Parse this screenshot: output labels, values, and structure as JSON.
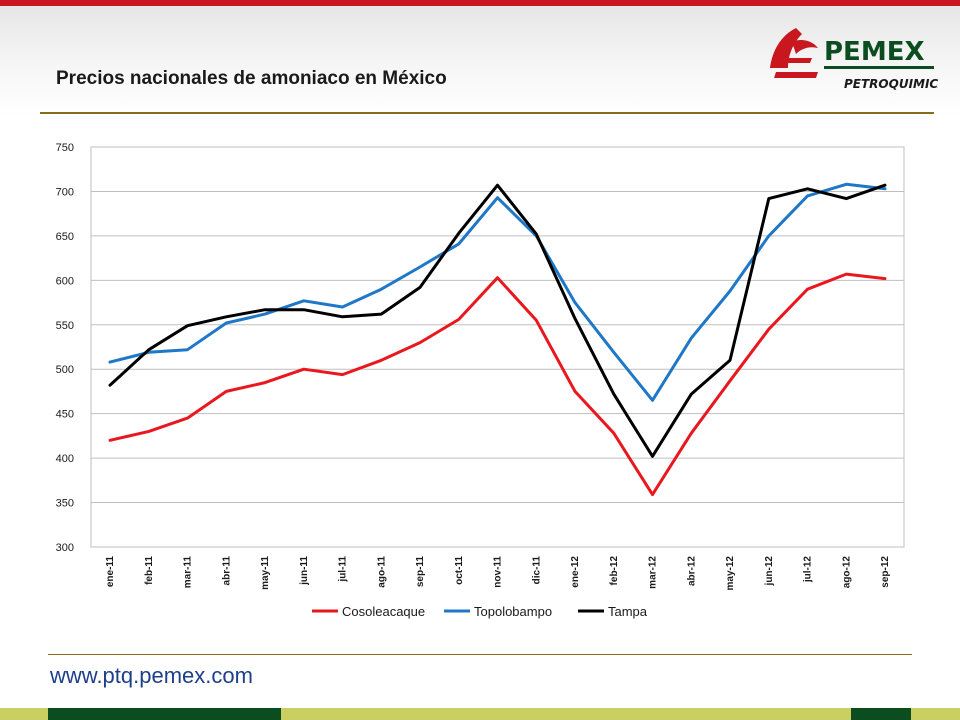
{
  "header": {
    "title": "Precios nacionales de amoniaco en México",
    "logo_text": "PEMEX",
    "logo_subtext": "PETROQUIMICA"
  },
  "footer": {
    "url": "www.ptq.pemex.com"
  },
  "colors": {
    "brand_red": "#c8171e",
    "brand_green": "#0b4d1e",
    "band_lime": "#c9cf63",
    "rule_gold": "#8a6d1a",
    "url_blue": "#1f3f8a"
  },
  "chart_data": {
    "type": "line",
    "title": "",
    "xlabel": "",
    "ylabel": "",
    "ylim": [
      300,
      750
    ],
    "yticks": [
      300,
      350,
      400,
      450,
      500,
      550,
      600,
      650,
      700,
      750
    ],
    "grid": true,
    "legend_position": "bottom",
    "categories": [
      "ene-11",
      "feb-11",
      "mar-11",
      "abr-11",
      "may-11",
      "jun-11",
      "jul-11",
      "ago-11",
      "sep-11",
      "oct-11",
      "nov-11",
      "dic-11",
      "ene-12",
      "feb-12",
      "mar-12",
      "abr-12",
      "may-12",
      "jun-12",
      "jul-12",
      "ago-12",
      "sep-12"
    ],
    "series": [
      {
        "name": "Cosoleacaque",
        "color": "#e8181e",
        "values": [
          420,
          430,
          445,
          475,
          485,
          500,
          494,
          510,
          530,
          556,
          603,
          555,
          475,
          428,
          359,
          428,
          487,
          545,
          590,
          607,
          602
        ]
      },
      {
        "name": "Topolobampo",
        "color": "#1f77c8",
        "values": [
          508,
          519,
          522,
          552,
          562,
          577,
          570,
          590,
          615,
          641,
          693,
          650,
          575,
          519,
          465,
          535,
          588,
          650,
          695,
          708,
          703
        ]
      },
      {
        "name": "Tampa",
        "color": "#000000",
        "values": [
          482,
          522,
          549,
          559,
          567,
          567,
          559,
          562,
          592,
          653,
          707,
          652,
          557,
          472,
          402,
          472,
          510,
          692,
          703,
          692,
          707
        ]
      }
    ]
  }
}
